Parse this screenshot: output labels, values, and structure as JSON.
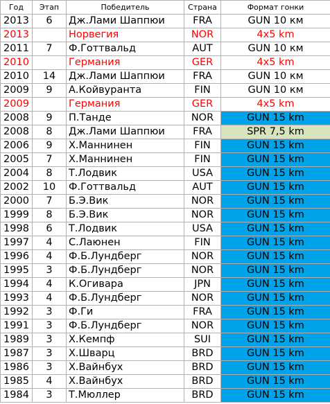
{
  "table": {
    "headers": [
      "Год",
      "Этап",
      "Победитель",
      "Страна",
      "Формат гонки"
    ],
    "rows": [
      {
        "year": "2013",
        "stage": "6",
        "winner": "Дж.Лами Шаппюи",
        "country": "FRA",
        "format": "GUN 10 км"
      },
      {
        "year": "2013",
        "winner": "Норвегия",
        "country": "NOR",
        "format": "4x5 km",
        "text_color": "#ff0000"
      },
      {
        "year": "2011",
        "stage": "7",
        "winner": "Ф.Готтвальд",
        "country": "AUT",
        "format": "GUN 10 км"
      },
      {
        "year": "2010",
        "winner": "Германия",
        "country": "GER",
        "format": "4x5 km",
        "text_color": "#ff0000"
      },
      {
        "year": "2010",
        "stage": "14",
        "winner": "Дж.Лами Шаппюи",
        "country": "FRA",
        "format": "GUN 10 км"
      },
      {
        "year": "2009",
        "stage": "9",
        "winner": "А.Койвуранта",
        "country": "FIN",
        "format": "GUN 10 км"
      },
      {
        "year": "2009",
        "winner": "Германия",
        "country": "GER",
        "format": "4x5 km",
        "text_color": "#ff0000"
      },
      {
        "year": "2008",
        "stage": "9",
        "winner": "П.Танде",
        "country": "NOR",
        "format": "GUN 15 km",
        "format_bg": "#00a2e8"
      },
      {
        "year": "2008",
        "stage": "8",
        "winner": "Дж.Лами Шаппюи",
        "country": "FRA",
        "format": "SPR 7,5 km",
        "format_bg": "#d8e4bc"
      },
      {
        "year": "2006",
        "stage": "9",
        "winner": "Х.Маннинен",
        "country": "FIN",
        "format": "GUN 15 km",
        "format_bg": "#00a2e8"
      },
      {
        "year": "2005",
        "stage": "7",
        "winner": "Х.Маннинен",
        "country": "FIN",
        "format": "GUN 15 km",
        "format_bg": "#00a2e8"
      },
      {
        "year": "2004",
        "stage": "8",
        "winner": "Т.Лодвик",
        "country": "USA",
        "format": "GUN 15 km",
        "format_bg": "#00a2e8"
      },
      {
        "year": "2002",
        "stage": "10",
        "winner": "Ф.Готтвальд",
        "country": "AUT",
        "format": "GUN 15 km",
        "format_bg": "#00a2e8"
      },
      {
        "year": "2000",
        "stage": "7",
        "winner": "Б.Э.Вик",
        "country": "NOR",
        "format": "GUN 15 km",
        "format_bg": "#00a2e8"
      },
      {
        "year": "1999",
        "stage": "8",
        "winner": "Б.Э.Вик",
        "country": "NOR",
        "format": "GUN 15 km",
        "format_bg": "#00a2e8"
      },
      {
        "year": "1998",
        "stage": "6",
        "winner": "Т.Лодвик",
        "country": "USA",
        "format": "GUN 15 km",
        "format_bg": "#00a2e8"
      },
      {
        "year": "1997",
        "stage": "4",
        "winner": "С.Лаюнен",
        "country": "FIN",
        "format": "GUN 15 km",
        "format_bg": "#00a2e8"
      },
      {
        "year": "1996",
        "stage": "4",
        "winner": "Ф.Б.Лундберг",
        "country": "NOR",
        "format": "GUN 15 km",
        "format_bg": "#00a2e8"
      },
      {
        "year": "1995",
        "stage": "3",
        "winner": "Ф.Б.Лундберг",
        "country": "NOR",
        "format": "GUN 15 km",
        "format_bg": "#00a2e8"
      },
      {
        "year": "1994",
        "stage": "4",
        "winner": "К.Огивара",
        "country": "JPN",
        "format": "GUN 15 km",
        "format_bg": "#00a2e8"
      },
      {
        "year": "1993",
        "stage": "4",
        "winner": "Ф.Б.Лундберг",
        "country": "NOR",
        "format": "GUN 15 km",
        "format_bg": "#00a2e8"
      },
      {
        "year": "1992",
        "stage": "3",
        "winner": "Ф.Ги",
        "country": "FRA",
        "format": "GUN 15 km",
        "format_bg": "#00a2e8"
      },
      {
        "year": "1991",
        "stage": "3",
        "winner": "Ф.Б.Лундберг",
        "country": "NOR",
        "format": "GUN 15 km",
        "format_bg": "#00a2e8"
      },
      {
        "year": "1989",
        "stage": "3",
        "winner": "Х.Кемпф",
        "country": "SUI",
        "format": "GUN 15 km",
        "format_bg": "#00a2e8"
      },
      {
        "year": "1987",
        "stage": "3",
        "winner": "Х.Шварц",
        "country": "BRD",
        "format": "GUN 15 km",
        "format_bg": "#00a2e8"
      },
      {
        "year": "1986",
        "stage": "3",
        "winner": "Х.Вайнбух",
        "country": "BRD",
        "format": "GUN 15 km",
        "format_bg": "#00a2e8"
      },
      {
        "year": "1985",
        "stage": "4",
        "winner": "Х.Вайнбух",
        "country": "BRD",
        "format": "GUN 15 km",
        "format_bg": "#00a2e8"
      },
      {
        "year": "1984",
        "stage": "3",
        "winner": "Т.Мюллер",
        "country": "BRD",
        "format": "GUN 15 km",
        "format_bg": "#00a2e8"
      }
    ]
  }
}
